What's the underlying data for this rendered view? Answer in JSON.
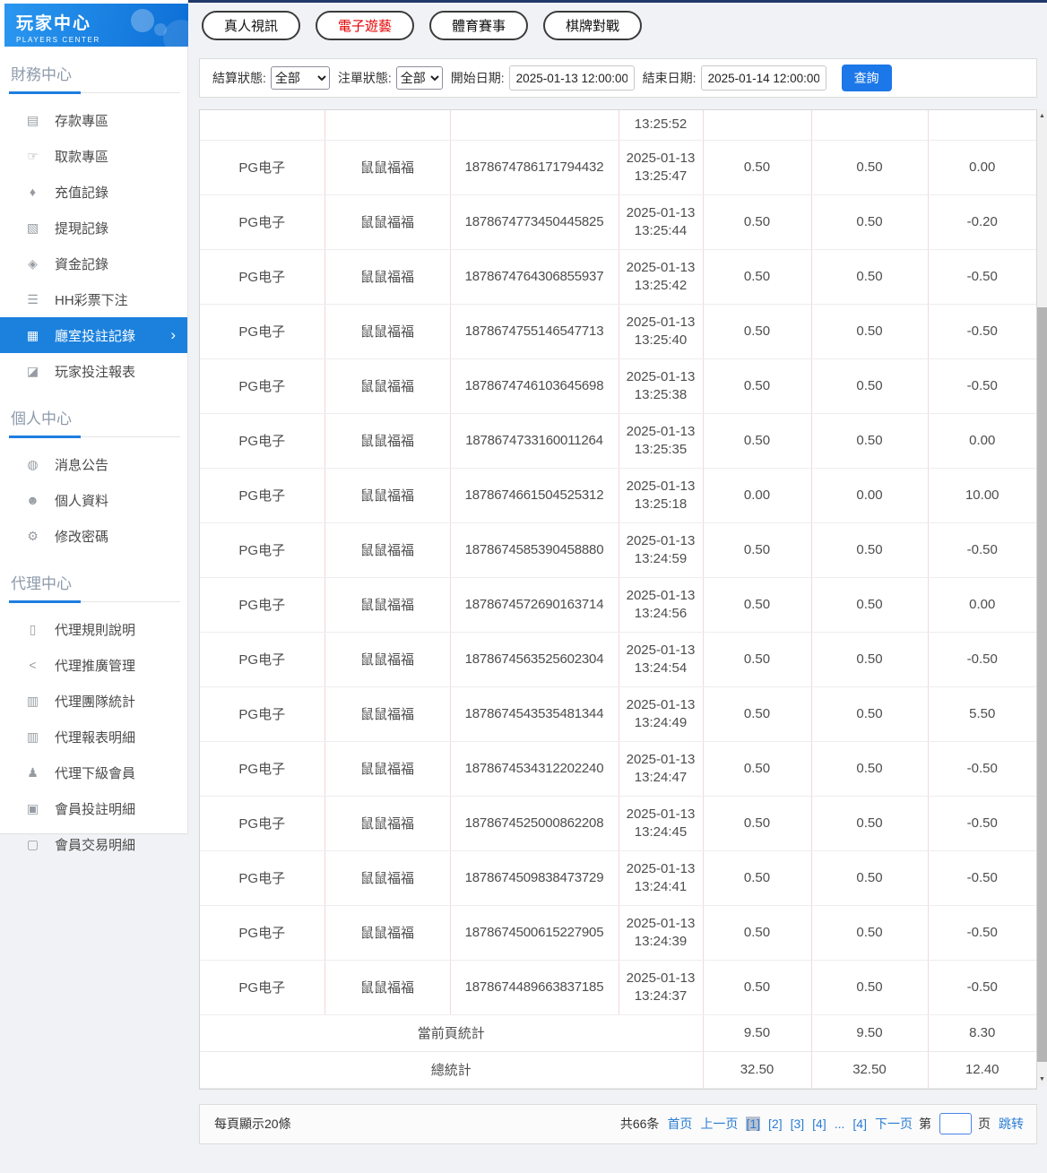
{
  "colors": {
    "accent_blue": "#1b81dd",
    "tab_active_red": "#e60000",
    "link_blue": "#2a7dd2",
    "table_border_pink": "#f2d9d9",
    "header_gradient": "#0d6fd6"
  },
  "icons": {
    "chevron_right": "›",
    "scroll_up": "▲",
    "scroll_down": "▼"
  },
  "sidebar": {
    "title": "玩家中心",
    "subtitle": "PLAYERS CENTER",
    "sections": [
      {
        "label": "財務中心",
        "items": [
          {
            "name": "sidebar-item-deposit-zone",
            "icon": "deposit-card-icon",
            "glyph": "▤",
            "label": "存款專區"
          },
          {
            "name": "sidebar-item-withdraw-zone",
            "icon": "withdraw-hand-icon",
            "glyph": "☞",
            "label": "取款專區"
          },
          {
            "name": "sidebar-item-recharge-records",
            "icon": "money-bag-icon",
            "glyph": "♦",
            "label": "充值記錄"
          },
          {
            "name": "sidebar-item-withdraw-records",
            "icon": "cash-cards-icon",
            "glyph": "▧",
            "label": "提現記錄"
          },
          {
            "name": "sidebar-item-funds-records",
            "icon": "wallet-icon",
            "glyph": "◈",
            "label": "資金記錄"
          },
          {
            "name": "sidebar-item-hh-lottery-bets",
            "icon": "list-icon",
            "glyph": "☰",
            "label": "HH彩票下注"
          },
          {
            "name": "sidebar-item-room-bet-records",
            "icon": "bet-record-icon",
            "glyph": "▦",
            "label": "廳室投註記錄",
            "active": true
          },
          {
            "name": "sidebar-item-player-bet-report",
            "icon": "chart-report-icon",
            "glyph": "◪",
            "label": "玩家投注報表"
          }
        ]
      },
      {
        "label": "個人中心",
        "items": [
          {
            "name": "sidebar-item-announcements",
            "icon": "bell-icon",
            "glyph": "◍",
            "label": "消息公告"
          },
          {
            "name": "sidebar-item-profile",
            "icon": "person-icon",
            "glyph": "☻",
            "label": "個人資料"
          },
          {
            "name": "sidebar-item-change-password",
            "icon": "gear-icon",
            "glyph": "⚙",
            "label": "修改密碼"
          }
        ]
      },
      {
        "label": "代理中心",
        "items": [
          {
            "name": "sidebar-item-agent-rules",
            "icon": "document-icon",
            "glyph": "▯",
            "label": "代理規則說明"
          },
          {
            "name": "sidebar-item-agent-promotion",
            "icon": "share-icon",
            "glyph": "<",
            "label": "代理推廣管理"
          },
          {
            "name": "sidebar-item-agent-team-stats",
            "icon": "newspaper-icon",
            "glyph": "▥",
            "label": "代理團隊統計"
          },
          {
            "name": "sidebar-item-agent-report-detail",
            "icon": "newspaper-icon",
            "glyph": "▥",
            "label": "代理報表明細"
          },
          {
            "name": "sidebar-item-agent-sub-members",
            "icon": "users-icon",
            "glyph": "♟",
            "label": "代理下級會員"
          },
          {
            "name": "sidebar-item-member-bet-detail",
            "icon": "clipboard-icon",
            "glyph": "▣",
            "label": "會員投註明細"
          },
          {
            "name": "sidebar-item-member-transaction-detail",
            "icon": "clipboard-icon",
            "glyph": "▢",
            "label": "會員交易明細"
          }
        ]
      }
    ]
  },
  "tabs": [
    {
      "name": "tab-live-video",
      "label": "真人視訊",
      "active": false
    },
    {
      "name": "tab-electronic-games",
      "label": "電子遊藝",
      "active": true
    },
    {
      "name": "tab-sports-events",
      "label": "體育賽事",
      "active": false
    },
    {
      "name": "tab-board-card-games",
      "label": "棋牌對戰",
      "active": false
    }
  ],
  "filters": {
    "settle_label": "結算狀態:",
    "settle_value": "全部",
    "order_label": "注單狀態:",
    "order_value": "全部",
    "start_label": "開始日期:",
    "start_value": "2025-01-13 12:00:00",
    "end_label": "結束日期:",
    "end_value": "2025-01-14 12:00:00",
    "search_label": "查詢"
  },
  "table": {
    "partial_row": {
      "time": "13:25:52"
    },
    "rows": [
      {
        "platform": "PG电子",
        "game": "鼠鼠福福",
        "order_no": "1878674786171794432",
        "date": "2025-01-13",
        "time": "13:25:47",
        "bet": "0.50",
        "valid": "0.50",
        "win_loss": "0.00"
      },
      {
        "platform": "PG电子",
        "game": "鼠鼠福福",
        "order_no": "1878674773450445825",
        "date": "2025-01-13",
        "time": "13:25:44",
        "bet": "0.50",
        "valid": "0.50",
        "win_loss": "-0.20"
      },
      {
        "platform": "PG电子",
        "game": "鼠鼠福福",
        "order_no": "1878674764306855937",
        "date": "2025-01-13",
        "time": "13:25:42",
        "bet": "0.50",
        "valid": "0.50",
        "win_loss": "-0.50"
      },
      {
        "platform": "PG电子",
        "game": "鼠鼠福福",
        "order_no": "1878674755146547713",
        "date": "2025-01-13",
        "time": "13:25:40",
        "bet": "0.50",
        "valid": "0.50",
        "win_loss": "-0.50"
      },
      {
        "platform": "PG电子",
        "game": "鼠鼠福福",
        "order_no": "1878674746103645698",
        "date": "2025-01-13",
        "time": "13:25:38",
        "bet": "0.50",
        "valid": "0.50",
        "win_loss": "-0.50"
      },
      {
        "platform": "PG电子",
        "game": "鼠鼠福福",
        "order_no": "1878674733160011264",
        "date": "2025-01-13",
        "time": "13:25:35",
        "bet": "0.50",
        "valid": "0.50",
        "win_loss": "0.00"
      },
      {
        "platform": "PG电子",
        "game": "鼠鼠福福",
        "order_no": "1878674661504525312",
        "date": "2025-01-13",
        "time": "13:25:18",
        "bet": "0.00",
        "valid": "0.00",
        "win_loss": "10.00"
      },
      {
        "platform": "PG电子",
        "game": "鼠鼠福福",
        "order_no": "1878674585390458880",
        "date": "2025-01-13",
        "time": "13:24:59",
        "bet": "0.50",
        "valid": "0.50",
        "win_loss": "-0.50"
      },
      {
        "platform": "PG电子",
        "game": "鼠鼠福福",
        "order_no": "1878674572690163714",
        "date": "2025-01-13",
        "time": "13:24:56",
        "bet": "0.50",
        "valid": "0.50",
        "win_loss": "0.00"
      },
      {
        "platform": "PG电子",
        "game": "鼠鼠福福",
        "order_no": "1878674563525602304",
        "date": "2025-01-13",
        "time": "13:24:54",
        "bet": "0.50",
        "valid": "0.50",
        "win_loss": "-0.50"
      },
      {
        "platform": "PG电子",
        "game": "鼠鼠福福",
        "order_no": "1878674543535481344",
        "date": "2025-01-13",
        "time": "13:24:49",
        "bet": "0.50",
        "valid": "0.50",
        "win_loss": "5.50"
      },
      {
        "platform": "PG电子",
        "game": "鼠鼠福福",
        "order_no": "1878674534312202240",
        "date": "2025-01-13",
        "time": "13:24:47",
        "bet": "0.50",
        "valid": "0.50",
        "win_loss": "-0.50"
      },
      {
        "platform": "PG电子",
        "game": "鼠鼠福福",
        "order_no": "1878674525000862208",
        "date": "2025-01-13",
        "time": "13:24:45",
        "bet": "0.50",
        "valid": "0.50",
        "win_loss": "-0.50"
      },
      {
        "platform": "PG电子",
        "game": "鼠鼠福福",
        "order_no": "1878674509838473729",
        "date": "2025-01-13",
        "time": "13:24:41",
        "bet": "0.50",
        "valid": "0.50",
        "win_loss": "-0.50"
      },
      {
        "platform": "PG电子",
        "game": "鼠鼠福福",
        "order_no": "1878674500615227905",
        "date": "2025-01-13",
        "time": "13:24:39",
        "bet": "0.50",
        "valid": "0.50",
        "win_loss": "-0.50"
      },
      {
        "platform": "PG电子",
        "game": "鼠鼠福福",
        "order_no": "1878674489663837185",
        "date": "2025-01-13",
        "time": "13:24:37",
        "bet": "0.50",
        "valid": "0.50",
        "win_loss": "-0.50"
      }
    ],
    "summaries": [
      {
        "label": "當前頁統計",
        "bet": "9.50",
        "valid": "9.50",
        "win_loss": "8.30"
      },
      {
        "label": "總統計",
        "bet": "32.50",
        "valid": "32.50",
        "win_loss": "12.40"
      }
    ]
  },
  "pagination": {
    "per_page": "每頁顯示20條",
    "total": "共66条",
    "items": [
      {
        "name": "first-page-link",
        "type": "link",
        "label": "首页"
      },
      {
        "name": "prev-page-link",
        "type": "link",
        "label": "上一页"
      },
      {
        "name": "page-1-link",
        "type": "page-current",
        "label": "[1]"
      },
      {
        "name": "page-2-link",
        "type": "page",
        "label": "[2]"
      },
      {
        "name": "page-3-link",
        "type": "page",
        "label": "[3]"
      },
      {
        "name": "page-4-link",
        "type": "page",
        "label": "[4]"
      },
      {
        "name": "page-ellipsis",
        "type": "ellipsis",
        "label": "..."
      },
      {
        "name": "page-4-link-last",
        "type": "page",
        "label": "[4]"
      },
      {
        "name": "next-page-link",
        "type": "link",
        "label": "下一页"
      }
    ],
    "jump_prefix": "第",
    "jump_suffix": "页",
    "jump_button": "跳转"
  }
}
